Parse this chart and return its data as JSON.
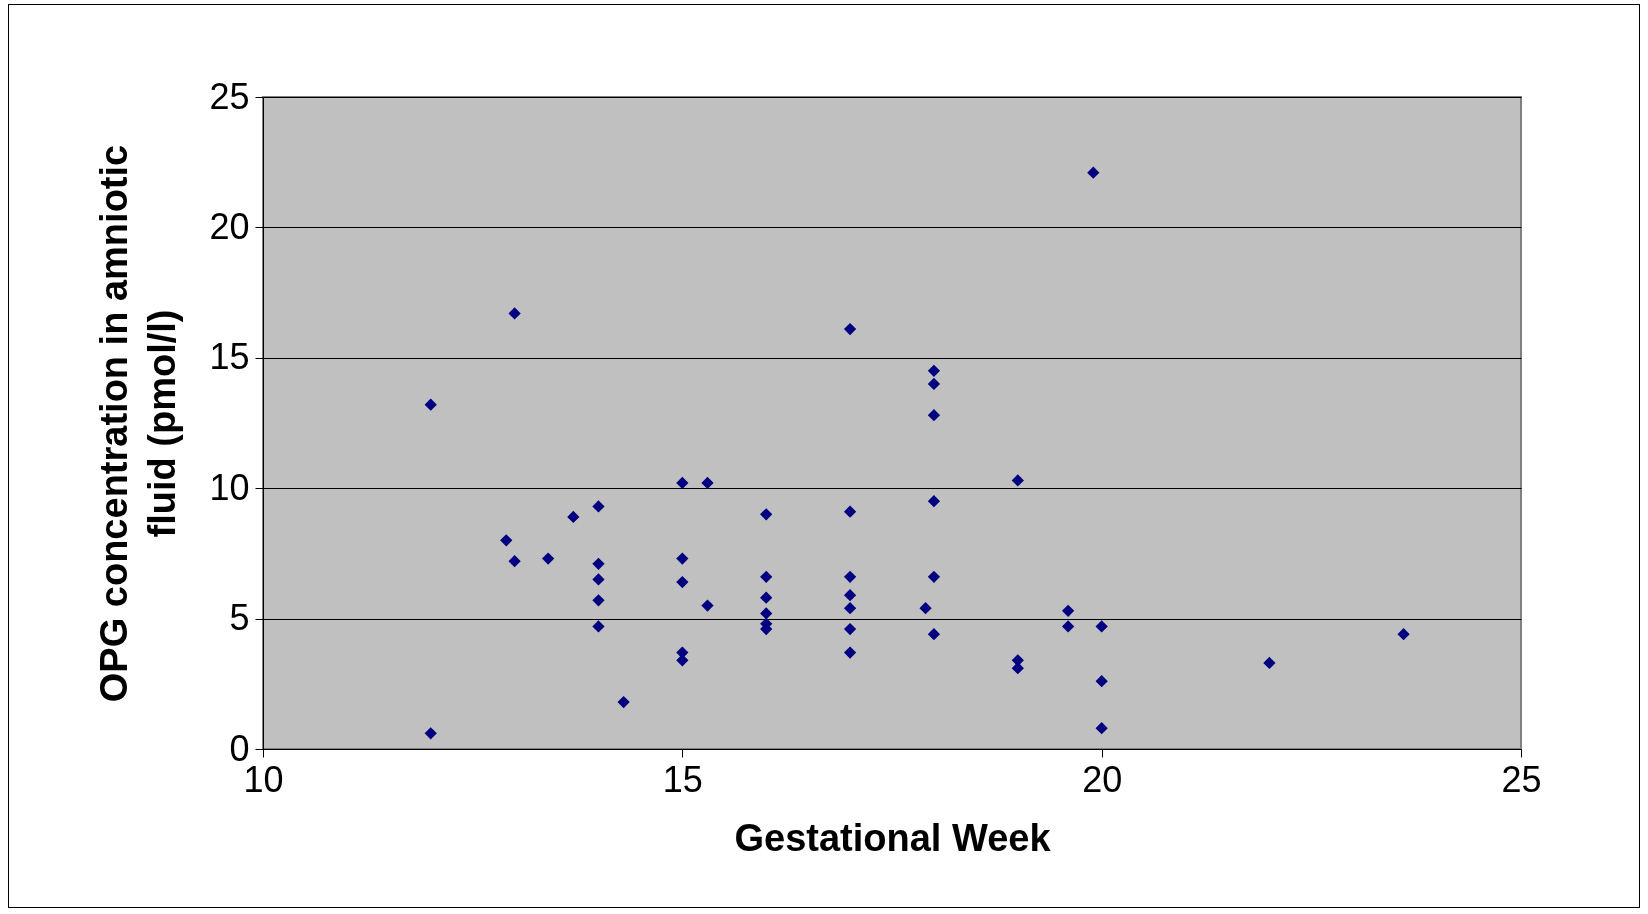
{
  "chart_data": {
    "type": "scatter",
    "xlabel": "Gestational Week",
    "ylabel": "OPG concentration in amniotic fluid (pmol/l)",
    "xlim": [
      10,
      25
    ],
    "xticks": [
      10,
      15,
      20,
      25
    ],
    "ylim": [
      0,
      25
    ],
    "yticks": [
      0,
      5,
      10,
      15,
      20,
      25
    ],
    "grid": "y",
    "marker": "diamond",
    "series": [
      {
        "color": "#000080",
        "x": [
          12,
          12,
          13,
          12.9,
          13,
          13.4,
          13.7,
          14,
          14,
          14,
          14,
          14,
          14.3,
          15,
          15,
          15,
          15,
          15,
          15.3,
          15.3,
          16,
          16,
          16,
          16,
          16,
          16,
          17,
          17,
          17,
          17,
          17,
          17,
          17,
          17.9,
          18,
          18,
          18,
          18,
          18,
          18,
          19,
          19,
          19,
          19.6,
          19.6,
          19.9,
          20,
          20,
          20,
          22,
          23.6
        ],
        "values": [
          0.6,
          13.2,
          16.7,
          8,
          7.2,
          7.3,
          8.9,
          9.3,
          7.1,
          6.5,
          5.7,
          4.7,
          1.8,
          10.2,
          7.3,
          6.4,
          3.7,
          3.4,
          10.2,
          5.5,
          9,
          6.6,
          5.8,
          5.2,
          4.8,
          4.6,
          16.1,
          9.1,
          6.6,
          5.9,
          5.4,
          4.6,
          3.7,
          5.4,
          14.5,
          14,
          12.8,
          9.5,
          6.6,
          4.4,
          10.3,
          3.4,
          3.1,
          5.3,
          4.7,
          22.1,
          4.7,
          2.6,
          0.8,
          3.3,
          4.4
        ]
      }
    ]
  }
}
